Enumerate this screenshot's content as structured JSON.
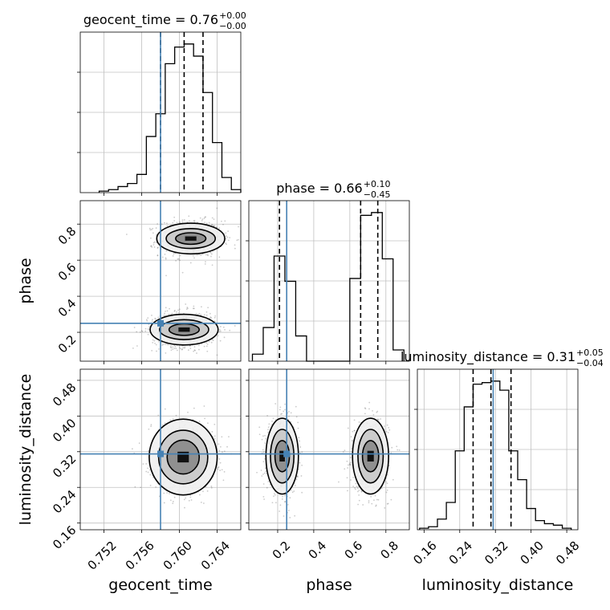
{
  "chart_data": {
    "type": "corner",
    "parameters": [
      "geocent_time",
      "phase",
      "luminosity_distance"
    ],
    "truths": {
      "geocent_time": 0.758,
      "phase": 0.25,
      "luminosity_distance": 0.315
    },
    "colors": {
      "truth": "#4682b4",
      "hist": "#000000",
      "grid": "#c0c0c0",
      "contour": "#000000"
    },
    "titles": [
      {
        "name": "geocent_time",
        "text": "geocent_time = 0.76",
        "sup": "+0.00",
        "sub": "−0.00"
      },
      {
        "name": "phase",
        "text": "phase = 0.66",
        "sup": "+0.10",
        "sub": "−0.45"
      },
      {
        "name": "luminosity_distance",
        "text": "luminosity_distance = 0.31",
        "sup": "+0.05",
        "sub": "−0.04"
      }
    ],
    "axis_labels": {
      "geocent_time": "geocent_time",
      "phase": "phase",
      "luminosity_distance": "luminosity_distance"
    },
    "ranges": {
      "geocent_time": [
        0.7495,
        0.7665
      ],
      "phase": [
        0.04,
        0.93
      ],
      "luminosity_distance": [
        0.145,
        0.505
      ]
    },
    "ticks": {
      "geocent_time": {
        "values": [
          0.752,
          0.756,
          0.76,
          0.764
        ],
        "labels": [
          "0.752",
          "0.756",
          "0.760",
          "0.764"
        ]
      },
      "phase": {
        "values": [
          0.2,
          0.4,
          0.6,
          0.8
        ],
        "labels": [
          "0.2",
          "0.4",
          "0.6",
          "0.8"
        ]
      },
      "luminosity_distance": {
        "values": [
          0.16,
          0.24,
          0.32,
          0.4,
          0.48
        ],
        "labels": [
          "0.16",
          "0.24",
          "0.32",
          "0.40",
          "0.48"
        ]
      }
    },
    "quantiles": {
      "geocent_time": [
        0.758,
        0.7605,
        0.7625
      ],
      "phase": [
        0.21,
        0.66,
        0.755
      ],
      "luminosity_distance": [
        0.27,
        0.31,
        0.355
      ]
    },
    "histograms": {
      "geocent_time": {
        "edges": [
          0.7515,
          0.7525,
          0.7535,
          0.7545,
          0.7555,
          0.7565,
          0.7575,
          0.7585,
          0.7595,
          0.7605,
          0.7615,
          0.7625,
          0.7635,
          0.7645,
          0.7655,
          0.7665
        ],
        "counts": [
          1,
          2,
          4,
          6,
          12,
          37,
          52,
          85,
          96,
          98,
          90,
          66,
          33,
          10,
          2
        ]
      },
      "phase": {
        "edges": [
          0.06,
          0.12,
          0.18,
          0.24,
          0.3,
          0.36,
          0.42,
          0.48,
          0.54,
          0.6,
          0.66,
          0.72,
          0.78,
          0.84,
          0.9
        ],
        "counts": [
          5,
          24,
          75,
          57,
          18,
          0,
          0,
          0,
          0,
          59,
          104,
          106,
          73,
          8
        ]
      },
      "luminosity_distance": {
        "edges": [
          0.15,
          0.17,
          0.19,
          0.21,
          0.23,
          0.25,
          0.27,
          0.29,
          0.31,
          0.33,
          0.35,
          0.37,
          0.39,
          0.41,
          0.43,
          0.45,
          0.47,
          0.49
        ],
        "counts": [
          1,
          2,
          7,
          18,
          52,
          81,
          96,
          97,
          98,
          92,
          52,
          33,
          14,
          6,
          4,
          3,
          1
        ]
      }
    },
    "density_2d": [
      {
        "x": "geocent_time",
        "y": "phase",
        "clusters": [
          {
            "cx": 0.7612,
            "cy": 0.72,
            "sx": 0.0012,
            "sy": 0.035,
            "contours": [
              [
                0.0036,
                0.085
              ],
              [
                0.0026,
                0.055
              ],
              [
                0.0016,
                0.032
              ]
            ],
            "core": [
              0.0006,
              0.012
            ]
          },
          {
            "cx": 0.7605,
            "cy": 0.215,
            "sx": 0.0012,
            "sy": 0.035,
            "contours": [
              [
                0.0036,
                0.085
              ],
              [
                0.0026,
                0.055
              ],
              [
                0.0016,
                0.032
              ]
            ],
            "core": [
              0.0006,
              0.012
            ]
          }
        ]
      },
      {
        "x": "geocent_time",
        "y": "luminosity_distance",
        "clusters": [
          {
            "cx": 0.7604,
            "cy": 0.308,
            "sx": 0.0012,
            "sy": 0.028,
            "contours": [
              [
                0.0036,
                0.085
              ],
              [
                0.0026,
                0.06
              ],
              [
                0.0017,
                0.038
              ]
            ],
            "core": [
              0.0006,
              0.012
            ]
          }
        ]
      },
      {
        "x": "phase",
        "y": "luminosity_distance",
        "clusters": [
          {
            "cx": 0.225,
            "cy": 0.31,
            "sx": 0.03,
            "sy": 0.028,
            "contours": [
              [
                0.09,
                0.085
              ],
              [
                0.065,
                0.06
              ],
              [
                0.04,
                0.035
              ]
            ],
            "core": [
              0.015,
              0.012
            ]
          },
          {
            "cx": 0.715,
            "cy": 0.31,
            "sx": 0.035,
            "sy": 0.028,
            "contours": [
              [
                0.1,
                0.085
              ],
              [
                0.07,
                0.06
              ],
              [
                0.045,
                0.035
              ]
            ],
            "core": [
              0.018,
              0.012
            ]
          }
        ]
      }
    ],
    "grid": true
  }
}
